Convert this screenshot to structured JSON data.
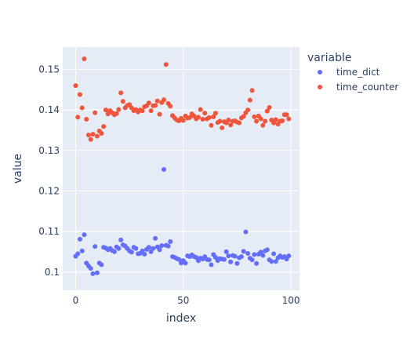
{
  "chart_data": {
    "type": "scatter",
    "xlabel": "index",
    "ylabel": "value",
    "xlim": [
      -6,
      104
    ],
    "ylim": [
      0.0955,
      0.1555
    ],
    "xticks": [
      0,
      50,
      100
    ],
    "yticks": [
      0.1,
      0.11,
      0.12,
      0.13,
      0.14,
      0.15
    ],
    "ytick_labels": [
      "0.1",
      "0.11",
      "0.12",
      "0.13",
      "0.14",
      "0.15"
    ],
    "legend": {
      "title": "variable",
      "position": "right"
    },
    "plot_bgcolor": "#E5ECF6",
    "series": [
      {
        "name": "time_dict",
        "color": "#636EFA",
        "x": [
          0,
          1,
          2,
          3,
          4,
          5,
          6,
          7,
          8,
          9,
          10,
          11,
          12,
          13,
          14,
          15,
          16,
          17,
          18,
          19,
          20,
          21,
          22,
          23,
          24,
          25,
          26,
          27,
          28,
          29,
          30,
          31,
          32,
          33,
          34,
          35,
          36,
          37,
          38,
          39,
          40,
          41,
          42,
          43,
          44,
          45,
          46,
          47,
          48,
          49,
          50,
          51,
          52,
          53,
          54,
          55,
          56,
          57,
          58,
          59,
          60,
          61,
          62,
          63,
          64,
          65,
          66,
          67,
          68,
          69,
          70,
          71,
          72,
          73,
          74,
          75,
          76,
          77,
          78,
          79,
          80,
          81,
          82,
          83,
          84,
          85,
          86,
          87,
          88,
          89,
          90,
          91,
          92,
          93,
          94,
          95,
          96,
          97,
          98,
          99
        ],
        "y": [
          0.1039,
          0.1045,
          0.1081,
          0.1052,
          0.1092,
          0.1022,
          0.1015,
          0.1009,
          0.0996,
          0.1063,
          0.0998,
          0.1022,
          0.1018,
          0.1061,
          0.1059,
          0.1055,
          0.1058,
          0.1053,
          0.105,
          0.1062,
          0.1058,
          0.1079,
          0.1067,
          0.1064,
          0.1058,
          0.1052,
          0.1049,
          0.1061,
          0.1058,
          0.1045,
          0.1046,
          0.1052,
          0.1044,
          0.1056,
          0.1061,
          0.105,
          0.1058,
          0.1083,
          0.1062,
          0.1055,
          0.1065,
          0.1253,
          0.1066,
          0.1064,
          0.1075,
          0.1038,
          0.1036,
          0.1033,
          0.1031,
          0.1022,
          0.1028,
          0.1022,
          0.104,
          0.1038,
          0.1042,
          0.1038,
          0.1036,
          0.1028,
          0.1034,
          0.1032,
          0.1038,
          0.1031,
          0.103,
          0.1018,
          0.1043,
          0.1036,
          0.1028,
          0.1033,
          0.1032,
          0.1031,
          0.105,
          0.104,
          0.1025,
          0.1041,
          0.1039,
          0.1021,
          0.1035,
          0.1038,
          0.1051,
          0.1099,
          0.1046,
          0.1034,
          0.103,
          0.1043,
          0.1021,
          0.1044,
          0.1049,
          0.1041,
          0.1052,
          0.1055,
          0.103,
          0.1026,
          0.1045,
          0.1026,
          0.1035,
          0.104,
          0.1036,
          0.1038,
          0.1032,
          0.104
        ]
      },
      {
        "name": "time_counter",
        "color": "#EF553B",
        "x": [
          0,
          1,
          2,
          3,
          4,
          5,
          6,
          7,
          8,
          9,
          10,
          11,
          12,
          13,
          14,
          15,
          16,
          17,
          18,
          19,
          20,
          21,
          22,
          23,
          24,
          25,
          26,
          27,
          28,
          29,
          30,
          31,
          32,
          33,
          34,
          35,
          36,
          37,
          38,
          39,
          40,
          41,
          42,
          43,
          44,
          45,
          46,
          47,
          48,
          49,
          50,
          51,
          52,
          53,
          54,
          55,
          56,
          57,
          58,
          59,
          60,
          61,
          62,
          63,
          64,
          65,
          66,
          67,
          68,
          69,
          70,
          71,
          72,
          73,
          74,
          75,
          76,
          77,
          78,
          79,
          80,
          81,
          82,
          83,
          84,
          85,
          86,
          87,
          88,
          89,
          90,
          91,
          92,
          93,
          94,
          95,
          96,
          97,
          98,
          99
        ],
        "y": [
          0.146,
          0.1382,
          0.1438,
          0.1405,
          0.1526,
          0.1377,
          0.1338,
          0.1327,
          0.134,
          0.1393,
          0.1335,
          0.1348,
          0.1342,
          0.1359,
          0.14,
          0.139,
          0.1398,
          0.1393,
          0.1388,
          0.1391,
          0.1401,
          0.1442,
          0.1421,
          0.1405,
          0.1411,
          0.1413,
          0.1405,
          0.1398,
          0.1401,
          0.1395,
          0.14,
          0.1398,
          0.1408,
          0.141,
          0.1417,
          0.1398,
          0.141,
          0.1411,
          0.1422,
          0.1389,
          0.1418,
          0.1425,
          0.1512,
          0.1416,
          0.1409,
          0.1386,
          0.138,
          0.1375,
          0.1373,
          0.1379,
          0.1374,
          0.1385,
          0.138,
          0.1381,
          0.139,
          0.1385,
          0.1378,
          0.1382,
          0.1401,
          0.1377,
          0.1392,
          0.1378,
          0.1381,
          0.1362,
          0.1383,
          0.1392,
          0.1369,
          0.1372,
          0.1356,
          0.1371,
          0.1368,
          0.1375,
          0.1363,
          0.1372,
          0.1373,
          0.137,
          0.1368,
          0.138,
          0.1384,
          0.1393,
          0.14,
          0.1424,
          0.1448,
          0.1383,
          0.1372,
          0.1385,
          0.1378,
          0.1362,
          0.1372,
          0.1397,
          0.1406,
          0.1375,
          0.1368,
          0.1376,
          0.1365,
          0.1372,
          0.1373,
          0.1388,
          0.1388,
          0.1378
        ]
      }
    ]
  }
}
